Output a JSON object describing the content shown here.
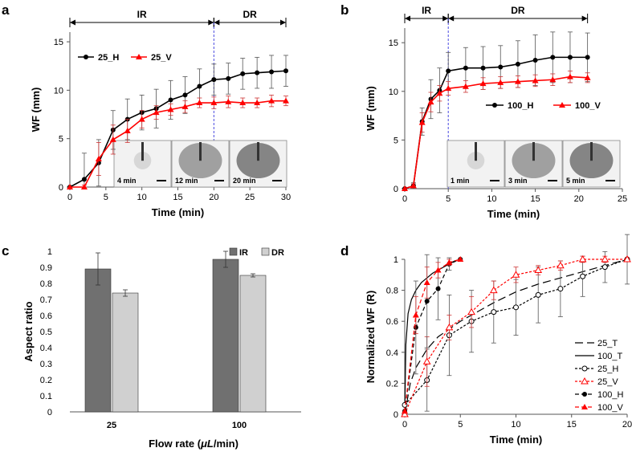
{
  "panels": {
    "a": "a",
    "b": "b",
    "c": "c",
    "d": "d"
  },
  "chart_data": [
    {
      "id": "a",
      "type": "line",
      "xlabel": "Time (min)",
      "ylabel": "WF (mm)",
      "xlim": [
        0,
        30
      ],
      "ylim": [
        0,
        16
      ],
      "xticks": [
        0,
        5,
        10,
        15,
        20,
        25,
        30
      ],
      "yticks": [
        0,
        5,
        10,
        15
      ],
      "phases": [
        {
          "label": "IR",
          "from": 0,
          "to": 20
        },
        {
          "label": "DR",
          "from": 20,
          "to": 30
        }
      ],
      "divider_x": 20,
      "legend_position": "top-left",
      "series": [
        {
          "name": "25_H",
          "color": "#000000",
          "marker": "circle",
          "x": [
            0,
            2,
            4,
            6,
            8,
            10,
            12,
            14,
            16,
            18,
            20,
            22,
            24,
            26,
            28,
            30
          ],
          "y": [
            0,
            0.8,
            2.5,
            5.9,
            7.0,
            7.7,
            8.1,
            9.0,
            9.5,
            10.4,
            11.1,
            11.2,
            11.7,
            11.8,
            11.9,
            12.0
          ],
          "err": [
            0,
            2.7,
            2.4,
            2.0,
            2.1,
            1.8,
            2.0,
            2.0,
            1.9,
            1.8,
            1.6,
            1.6,
            1.6,
            1.6,
            1.7,
            1.6
          ]
        },
        {
          "name": "25_V",
          "color": "#ff0000",
          "marker": "triangle",
          "x": [
            0,
            2,
            4,
            6,
            8,
            10,
            12,
            14,
            16,
            18,
            20,
            22,
            24,
            26,
            28,
            30
          ],
          "y": [
            0,
            0,
            2.9,
            4.9,
            5.8,
            7.0,
            7.7,
            8.0,
            8.3,
            8.7,
            8.7,
            8.8,
            8.7,
            8.7,
            8.9,
            8.9
          ],
          "err": [
            0,
            0.2,
            1.7,
            1.5,
            1.2,
            0.9,
            0.7,
            0.6,
            0.6,
            0.5,
            0.6,
            0.6,
            0.5,
            0.5,
            0.6,
            0.5
          ]
        }
      ],
      "insets": [
        {
          "label": "4 min"
        },
        {
          "label": "12 min"
        },
        {
          "label": "20 min"
        }
      ]
    },
    {
      "id": "b",
      "type": "line",
      "xlabel": "Time (min)",
      "ylabel": "WF (mm)",
      "xlim": [
        0,
        25
      ],
      "ylim": [
        0,
        16.5
      ],
      "xticks": [
        0,
        5,
        10,
        15,
        20,
        25
      ],
      "yticks": [
        0,
        5,
        10,
        15
      ],
      "phases": [
        {
          "label": "IR",
          "from": 0,
          "to": 5
        },
        {
          "label": "DR",
          "from": 5,
          "to": 21
        }
      ],
      "divider_x": 5,
      "legend_position": "right",
      "series": [
        {
          "name": "100_H",
          "color": "#000000",
          "marker": "circle",
          "x": [
            0,
            1,
            2,
            3,
            4,
            5,
            7,
            9,
            11,
            13,
            15,
            17,
            19,
            21
          ],
          "y": [
            0,
            0.3,
            6.9,
            9.2,
            10.1,
            12.1,
            12.4,
            12.4,
            12.5,
            12.8,
            13.2,
            13.5,
            13.5,
            13.5
          ],
          "err": [
            0,
            0.3,
            1.4,
            2.0,
            2.3,
            1.9,
            2.1,
            2.2,
            2.2,
            2.4,
            2.6,
            2.6,
            2.6,
            2.5
          ]
        },
        {
          "name": "100_V",
          "color": "#ff0000",
          "marker": "triangle",
          "x": [
            0,
            1,
            2,
            3,
            4,
            5,
            7,
            9,
            11,
            13,
            15,
            17,
            19,
            21
          ],
          "y": [
            0,
            0.3,
            6.8,
            8.9,
            9.8,
            10.3,
            10.5,
            10.8,
            10.9,
            11.0,
            11.1,
            11.2,
            11.5,
            11.4
          ],
          "err": [
            0,
            0.2,
            1.0,
            1.0,
            0.8,
            0.7,
            0.6,
            0.6,
            0.6,
            0.6,
            0.6,
            0.6,
            0.6,
            0.5
          ]
        }
      ],
      "insets": [
        {
          "label": "1 min"
        },
        {
          "label": "3 min"
        },
        {
          "label": "5 min"
        }
      ]
    },
    {
      "id": "c",
      "type": "bar",
      "xlabel": "Flow rate (",
      "xlabel_unit": "μL",
      "xlabel_tail": "/min)",
      "ylabel": "Aspect ratio",
      "ylim": [
        0,
        1
      ],
      "yticks": [
        "0",
        "0.1",
        "0.2",
        "0.3",
        "0.4",
        "0.5",
        "0.6",
        "0.7",
        "0.8",
        "0.9",
        "1"
      ],
      "categories": [
        "25",
        "100"
      ],
      "legend_position": "top-right",
      "series": [
        {
          "name": "IR",
          "color": "#707070",
          "values": [
            0.89,
            0.95
          ],
          "err": [
            0.1,
            0.05
          ]
        },
        {
          "name": "DR",
          "color": "#d0d0d0",
          "values": [
            0.74,
            0.85
          ],
          "err": [
            0.02,
            0.01
          ]
        }
      ]
    },
    {
      "id": "d",
      "type": "line",
      "xlabel": "Time (min)",
      "ylabel": "Normalized WF (R)",
      "xlim": [
        0,
        20
      ],
      "ylim": [
        0,
        1
      ],
      "xticks": [
        0,
        5,
        10,
        15,
        20
      ],
      "yticks": [
        "0",
        "0.2",
        "0.4",
        "0.6",
        "0.8",
        "1"
      ],
      "legend_position": "bottom-right",
      "series": [
        {
          "name": "25_T",
          "color": "#000000",
          "dash": "10,5",
          "marker": "none",
          "x": [
            0,
            0.5,
            1,
            2,
            3,
            4,
            5,
            6,
            8,
            10,
            12,
            14,
            16,
            18,
            20
          ],
          "y": [
            0,
            0.2,
            0.3,
            0.42,
            0.5,
            0.55,
            0.6,
            0.64,
            0.72,
            0.79,
            0.84,
            0.88,
            0.92,
            0.96,
            1.0
          ]
        },
        {
          "name": "100_T",
          "color": "#000000",
          "dash": "",
          "marker": "none",
          "x": [
            0,
            0.1,
            0.3,
            0.6,
            1,
            1.5,
            2,
            2.5,
            3,
            3.5,
            4,
            4.5,
            5
          ],
          "y": [
            0,
            0.45,
            0.65,
            0.74,
            0.8,
            0.85,
            0.88,
            0.91,
            0.93,
            0.95,
            0.97,
            0.99,
            1.0
          ]
        },
        {
          "name": "25_H",
          "color": "#000000",
          "dash": "3,2",
          "marker": "open-circle",
          "x": [
            0,
            2,
            4,
            6,
            8,
            10,
            12,
            14,
            16,
            18,
            20
          ],
          "y": [
            0.06,
            0.22,
            0.51,
            0.6,
            0.66,
            0.69,
            0.77,
            0.81,
            0.89,
            0.95,
            1.0
          ],
          "err": [
            0,
            0.2,
            0.26,
            0.2,
            0.2,
            0.18,
            0.18,
            0.18,
            0.13,
            0.1,
            0.16
          ]
        },
        {
          "name": "25_V",
          "color": "#ff0000",
          "dash": "3,2",
          "marker": "open-triangle",
          "x": [
            0,
            2,
            4,
            6,
            8,
            10,
            12,
            14,
            16,
            18,
            20
          ],
          "y": [
            0.0,
            0.34,
            0.56,
            0.66,
            0.8,
            0.9,
            0.93,
            0.96,
            1.0,
            1.0,
            1.0
          ],
          "err": [
            0,
            0.16,
            0.08,
            0.1,
            0.06,
            0.05,
            0.03,
            0.03,
            0.02,
            0.02,
            0.01
          ]
        },
        {
          "name": "100_H",
          "color": "#000000",
          "dash": "5,3",
          "marker": "circle",
          "x": [
            0,
            1,
            2,
            3,
            4,
            5
          ],
          "y": [
            0.02,
            0.56,
            0.73,
            0.81,
            0.97,
            1.0
          ],
          "err": [
            0,
            0.3,
            0.3,
            0.2,
            0.04,
            0.0
          ]
        },
        {
          "name": "100_V",
          "color": "#ff0000",
          "dash": "5,3",
          "marker": "triangle",
          "x": [
            0,
            1,
            2,
            3,
            4,
            5
          ],
          "y": [
            0.02,
            0.64,
            0.85,
            0.93,
            0.98,
            1.0
          ],
          "err": [
            0,
            0.12,
            0.1,
            0.05,
            0.02,
            0.0
          ]
        }
      ]
    }
  ]
}
